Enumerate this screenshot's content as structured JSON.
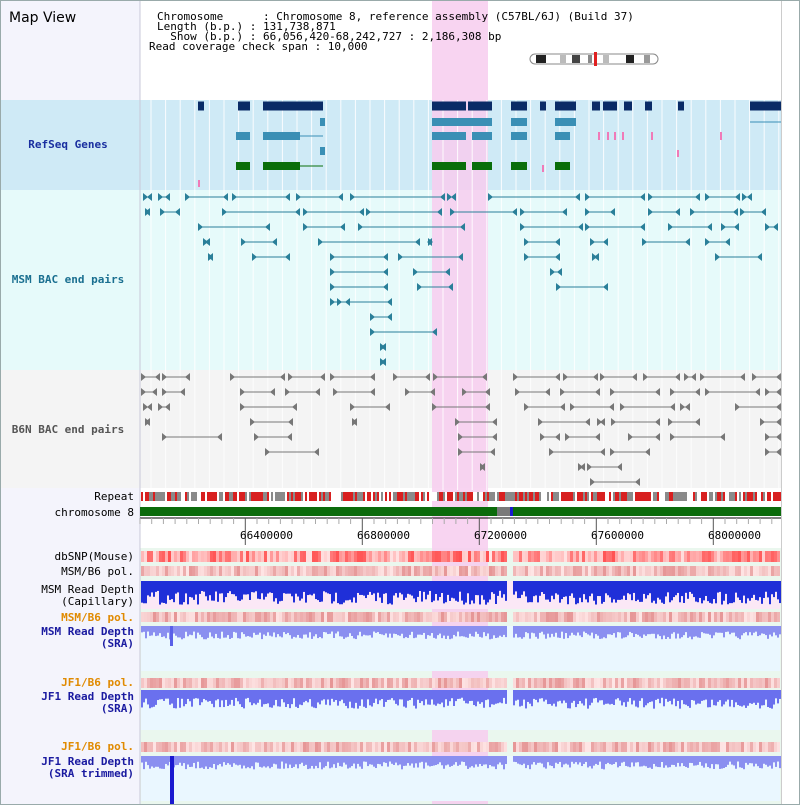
{
  "page": {
    "title": "Map View"
  },
  "info": {
    "chromosome_line": "Chromosome      : Chromosome 8, reference assembly (C57BL/6J) (Build 37)",
    "length_line": "Length (b.p.) : 131,738,871",
    "show_line": "  Show (b.p.) : 66,056,420-68,242,727 : 2,186,308 bp",
    "coverage_line": "Read coverage check span : 10,000"
  },
  "tracks": {
    "refseq": "RefSeq Genes",
    "msm_bac": "MSM BAC end pairs",
    "b6n_bac": "B6N BAC end pairs",
    "repeat": "Repeat",
    "chrom": "chromosome 8",
    "dbsnp": "dbSNP(Mouse)",
    "msm_pol": "MSM/B6 pol.",
    "msm_depth_cap": [
      "MSM Read Depth",
      "(Capillary)"
    ],
    "msm_pol2": "MSM/B6 pol.",
    "msm_depth_sra": [
      "MSM Read Depth",
      "(SRA)"
    ],
    "jf1_pol": "JF1/B6 pol.",
    "jf1_depth": [
      "JF1 Read Depth",
      "(SRA)"
    ],
    "jf1_pol2": "JF1/B6 pol.",
    "jf1_trim": [
      "JF1 Read Depth",
      "(SRA trimmed)"
    ]
  },
  "axis_ticks": [
    "66400000",
    "66800000",
    "67200000",
    "67600000",
    "68000000"
  ],
  "colors": {
    "gene_navy": "#0a2b66",
    "gene_teal": "#3a8fb5",
    "gene_green": "#0a6e0a",
    "bac_msm": "#2a7f99",
    "bac_b6n": "#777777",
    "highlight": "#f8c8ec",
    "refseq_label": "#1a2fa0",
    "msm_label": "#1a6f90",
    "orange_label": "#e08a00",
    "blue_label": "#1a1aa0"
  }
}
